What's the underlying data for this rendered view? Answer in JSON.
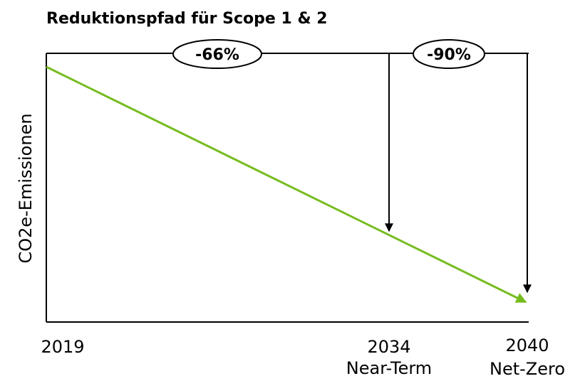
{
  "title": "Reduktionspfad für Scope 1 & 2",
  "y_axis_label": "CO2e-Emissionen",
  "milestones": [
    {
      "year": "2019"
    },
    {
      "year": "2034",
      "label": "Near-Term"
    },
    {
      "year": "2040",
      "label": "Net-Zero"
    }
  ],
  "reductions": [
    {
      "label": "-66%"
    },
    {
      "label": "-90%"
    }
  ]
}
